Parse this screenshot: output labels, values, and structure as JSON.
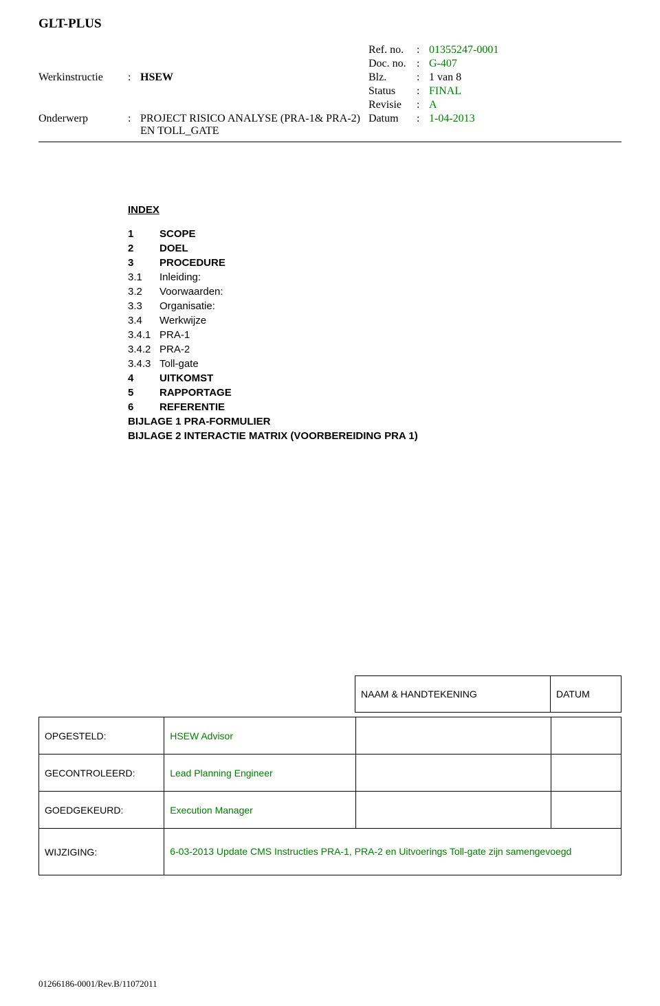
{
  "company": "GLT-PLUS",
  "header": {
    "werkinstructie_label": "Werkinstructie",
    "werkinstructie_value": "HSEW",
    "onderwerp_label": "Onderwerp",
    "onderwerp_value": "PROJECT RISICO ANALYSE (PRA-1& PRA-2) EN TOLL_GATE",
    "ref_label": "Ref. no.",
    "ref_value": "01355247-0001",
    "doc_label": "Doc. no.",
    "doc_value": "G-407",
    "blz_label": "Blz.",
    "blz_value": "1 van 8",
    "status_label": "Status",
    "status_value": "FINAL",
    "revisie_label": "Revisie",
    "revisie_value": "A",
    "datum_label": "Datum",
    "datum_value": "1-04-2013"
  },
  "index": {
    "title": "INDEX",
    "items": [
      {
        "num": "1",
        "text": "SCOPE",
        "bold": true
      },
      {
        "num": "2",
        "text": "DOEL",
        "bold": true
      },
      {
        "num": "3",
        "text": "PROCEDURE",
        "bold": true
      },
      {
        "num": "3.1",
        "text": "Inleiding:",
        "bold": false
      },
      {
        "num": "3.2",
        "text": "Voorwaarden:",
        "bold": false
      },
      {
        "num": "3.3",
        "text": "Organisatie:",
        "bold": false
      },
      {
        "num": "3.4",
        "text": "Werkwijze",
        "bold": false
      },
      {
        "num": "3.4.1",
        "text": "PRA-1",
        "bold": false
      },
      {
        "num": "3.4.2",
        "text": "PRA-2",
        "bold": false
      },
      {
        "num": "3.4.3",
        "text": "Toll-gate",
        "bold": false
      },
      {
        "num": "4",
        "text": "UITKOMST",
        "bold": true
      },
      {
        "num": "5",
        "text": "RAPPORTAGE",
        "bold": true
      },
      {
        "num": "6",
        "text": "REFERENTIE",
        "bold": true
      },
      {
        "num": "",
        "text": "BIJLAGE 1 PRA-FORMULIER",
        "bold": true
      },
      {
        "num": "",
        "text": "BIJLAGE 2 INTERACTIE MATRIX (VOORBEREIDING PRA 1)",
        "bold": true
      }
    ]
  },
  "signatures": {
    "col_naam": "NAAM & HANDTEKENING",
    "col_datum": "DATUM",
    "rows": [
      {
        "label": "OPGESTELD:",
        "value": "HSEW Advisor"
      },
      {
        "label": "GECONTROLEERD:",
        "value": "Lead Planning Engineer"
      },
      {
        "label": "GOEDGEKEURD:",
        "value": "Execution Manager"
      }
    ],
    "wijziging_label": "WIJZIGING:",
    "wijziging_value": "6-03-2013 Update CMS  Instructies PRA-1, PRA-2 en Uitvoerings Toll-gate zijn samengevoegd"
  },
  "footer": "01266186-0001/Rev.B/11072011"
}
